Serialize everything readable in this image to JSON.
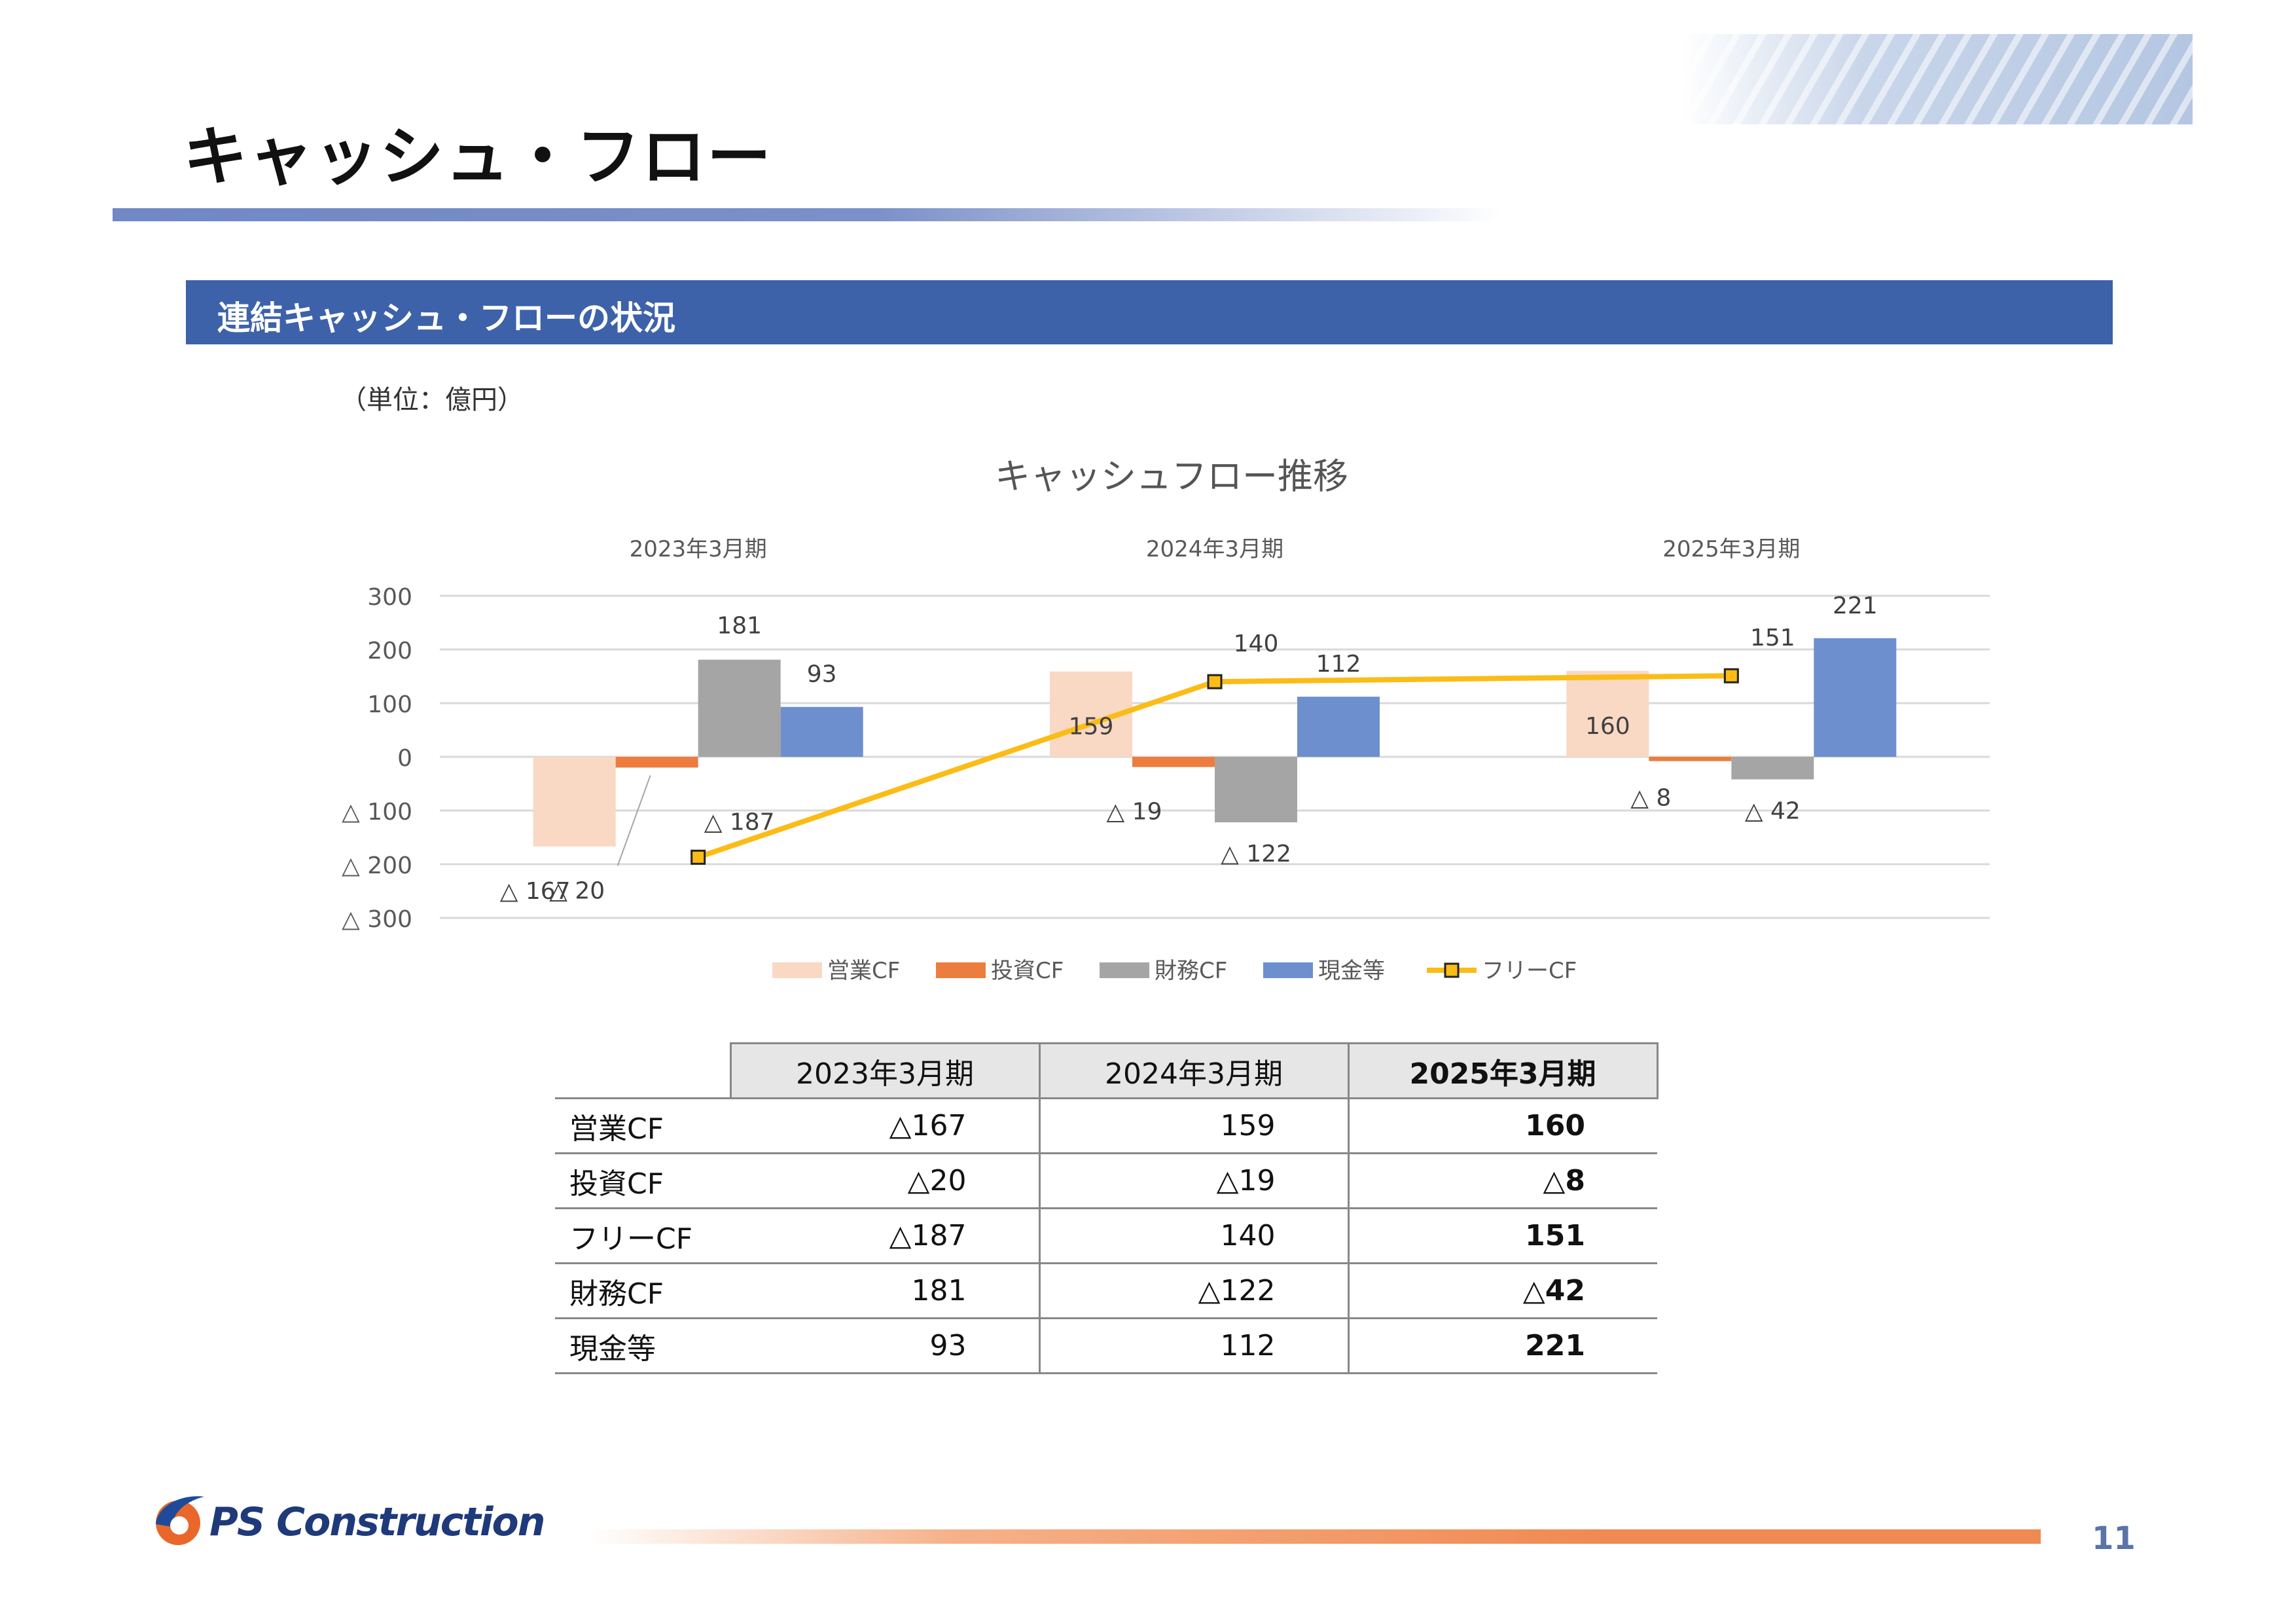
{
  "page": {
    "title": "キャッシュ・フロー",
    "section_title": "連結キャッシュ・フローの状況",
    "unit_note": "（単位：億円）",
    "page_number": "11",
    "logo_text": "PS Construction"
  },
  "colors": {
    "operating": "#f9d9c4",
    "investing": "#ec7d3e",
    "financing": "#a5a5a5",
    "cash": "#6d8fcd",
    "free": "#fbbc16",
    "section_bar": "#3d62a9"
  },
  "chart_data": {
    "type": "bar",
    "title": "キャッシュフロー推移",
    "categories": [
      "2023年3月期",
      "2024年3月期",
      "2025年3月期"
    ],
    "yticks": [
      "300",
      "200",
      "100",
      "0",
      "△ 100",
      "△ 200",
      "△ 300"
    ],
    "ylim": [
      -300,
      300
    ],
    "grid": true,
    "legend_position": "bottom",
    "series": [
      {
        "name": "営業CF",
        "type": "bar",
        "values": [
          -167,
          159,
          160
        ],
        "labels": [
          "△ 167",
          "159",
          "160"
        ]
      },
      {
        "name": "投資CF",
        "type": "bar",
        "values": [
          -20,
          -19,
          -8
        ],
        "labels": [
          "△ 20",
          "△ 19",
          "△ 8"
        ]
      },
      {
        "name": "財務CF",
        "type": "bar",
        "values": [
          181,
          -122,
          -42
        ],
        "labels": [
          "181",
          "△ 122",
          "△ 42"
        ]
      },
      {
        "name": "現金等",
        "type": "bar",
        "values": [
          93,
          112,
          221
        ],
        "labels": [
          "93",
          "112",
          "221"
        ]
      },
      {
        "name": "フリーCF",
        "type": "line",
        "values": [
          -187,
          140,
          151
        ],
        "labels": [
          "△ 187",
          "140",
          "151"
        ]
      }
    ]
  },
  "table": {
    "headers": [
      "2023年3月期",
      "2024年3月期",
      "2025年3月期"
    ],
    "rows": [
      {
        "label": "営業CF",
        "values": [
          "△167",
          "159",
          "160"
        ]
      },
      {
        "label": "投資CF",
        "values": [
          "△20",
          "△19",
          "△8"
        ]
      },
      {
        "label": "フリーCF",
        "values": [
          "△187",
          "140",
          "151"
        ]
      },
      {
        "label": "財務CF",
        "values": [
          "181",
          "△122",
          "△42"
        ]
      },
      {
        "label": "現金等",
        "values": [
          "93",
          "112",
          "221"
        ]
      }
    ]
  }
}
